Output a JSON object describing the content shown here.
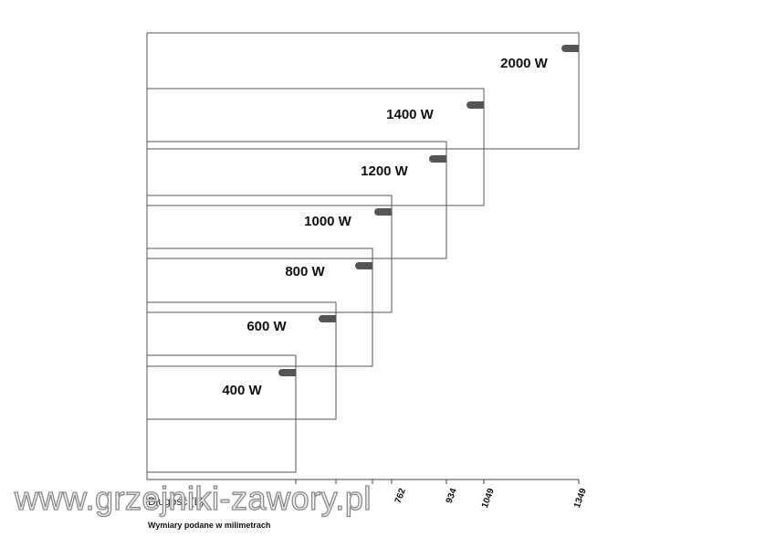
{
  "nodes": [
    {
      "label": "2000 W"
    },
    {
      "label": "1400 W"
    },
    {
      "label": "1200 W"
    },
    {
      "label": "1000 W"
    },
    {
      "label": "800 W"
    },
    {
      "label": "600 W"
    },
    {
      "label": "400 W"
    }
  ],
  "axis": {
    "title": "Długość (L)",
    "tick_labels": [
      "762",
      "934",
      "1049",
      "1349"
    ]
  },
  "note": "Wymiary podane w milimetrach",
  "watermark": "www.grzejniki-zawory.pl"
}
